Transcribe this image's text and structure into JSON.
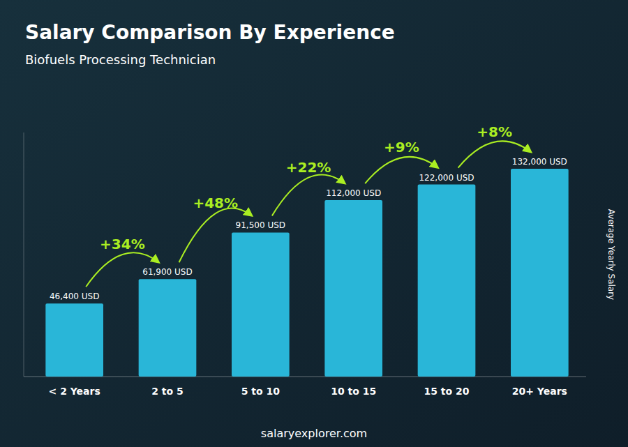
{
  "chart_data": {
    "type": "bar",
    "title": "Salary Comparison By Experience",
    "subtitle": "Biofuels Processing Technician",
    "ylabel": "Average Yearly Salary",
    "footer": "salaryexplorer.com",
    "categories": [
      "< 2 Years",
      "2 to 5",
      "5 to 10",
      "10 to 15",
      "15 to 20",
      "20+ Years"
    ],
    "values": [
      46400,
      61900,
      91500,
      112000,
      122000,
      132000
    ],
    "value_labels": [
      "46,400 USD",
      "61,900 USD",
      "91,500 USD",
      "112,000 USD",
      "122,000 USD",
      "132,000 USD"
    ],
    "data_labels": true,
    "annotations": [
      "+34%",
      "+48%",
      "+22%",
      "+9%",
      "+8%"
    ],
    "color": "#29b6d8",
    "ylim": [
      0,
      155000
    ],
    "tick_labels": "x",
    "grid": false
  }
}
